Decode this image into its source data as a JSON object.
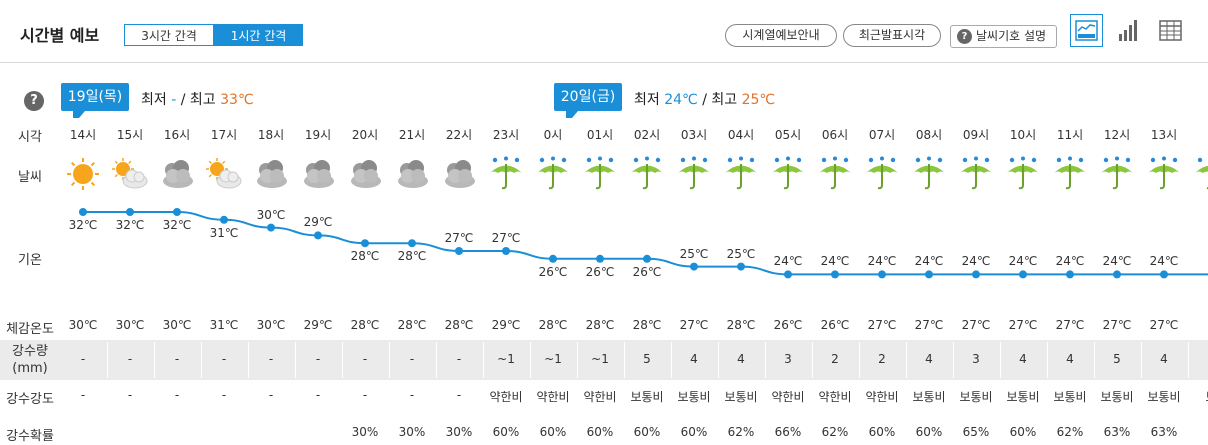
{
  "header": {
    "title": "시간별 예보",
    "interval_tabs": [
      "3시간 간격",
      "1시간 간격"
    ],
    "buttons": [
      "시계열예보안내",
      "최근발표시각"
    ],
    "guide_button": "날씨기호 설명",
    "view_icons": [
      "chart-view-icon",
      "bar-view-icon",
      "table-view-icon"
    ]
  },
  "days": [
    {
      "label": "19일(목)",
      "min_label": "최저",
      "min": "-",
      "sep": "/",
      "max_label": "최고",
      "max": "33℃"
    },
    {
      "label": "20일(금)",
      "min_label": "최저",
      "min": "24℃",
      "sep": "/",
      "max_label": "최고",
      "max": "25℃"
    }
  ],
  "row_labels": {
    "time": "시각",
    "weather": "날씨",
    "temp": "기온",
    "feel": "체감온도",
    "amount": "강수량",
    "amount_unit": "(mm)",
    "intensity": "강수강도",
    "probability": "강수확률"
  },
  "colors": {
    "accent": "#1a8fd8",
    "max_temp": "#e0742b",
    "umbrella": "#8cc63f",
    "sun": "#f7a51c"
  },
  "hours": [
    "14시",
    "15시",
    "16시",
    "17시",
    "18시",
    "19시",
    "20시",
    "21시",
    "22시",
    "23시",
    "0시",
    "01시",
    "02시",
    "03시",
    "04시",
    "05시",
    "06시",
    "07시",
    "08시",
    "09시",
    "10시",
    "11시",
    "12시",
    "13시",
    "1"
  ],
  "weather_icons": [
    "sunny-icon",
    "partly-cloudy-icon",
    "cloudy-icon",
    "partly-cloudy-icon",
    "cloudy-icon",
    "cloudy-icon",
    "cloudy-icon",
    "cloudy-icon",
    "cloudy-icon",
    "rain-umbrella-icon",
    "rain-umbrella-icon",
    "rain-umbrella-icon",
    "rain-umbrella-icon",
    "rain-umbrella-icon",
    "rain-umbrella-icon",
    "rain-umbrella-icon",
    "rain-umbrella-icon",
    "rain-umbrella-icon",
    "rain-umbrella-icon",
    "rain-umbrella-icon",
    "rain-umbrella-icon",
    "rain-umbrella-icon",
    "rain-umbrella-icon",
    "rain-umbrella-icon",
    "rain-umbrella-icon"
  ],
  "temps": [
    "32℃",
    "32℃",
    "32℃",
    "31℃",
    "30℃",
    "29℃",
    "28℃",
    "28℃",
    "27℃",
    "27℃",
    "26℃",
    "26℃",
    "26℃",
    "25℃",
    "25℃",
    "24℃",
    "24℃",
    "24℃",
    "24℃",
    "24℃",
    "24℃",
    "24℃",
    "24℃",
    "24℃",
    ""
  ],
  "chart_data": {
    "type": "line",
    "x": [
      "14시",
      "15시",
      "16시",
      "17시",
      "18시",
      "19시",
      "20시",
      "21시",
      "22시",
      "23시",
      "0시",
      "01시",
      "02시",
      "03시",
      "04시",
      "05시",
      "06시",
      "07시",
      "08시",
      "09시",
      "10시",
      "11시",
      "12시",
      "13시"
    ],
    "values": [
      32,
      32,
      32,
      31,
      30,
      29,
      28,
      28,
      27,
      27,
      26,
      26,
      26,
      25,
      25,
      24,
      24,
      24,
      24,
      24,
      24,
      24,
      24,
      24
    ],
    "title": "",
    "xlabel": "",
    "ylabel": "기온"
  },
  "feels": [
    "30℃",
    "30℃",
    "30℃",
    "31℃",
    "30℃",
    "29℃",
    "28℃",
    "28℃",
    "28℃",
    "29℃",
    "28℃",
    "28℃",
    "28℃",
    "27℃",
    "28℃",
    "26℃",
    "26℃",
    "27℃",
    "27℃",
    "27℃",
    "27℃",
    "27℃",
    "27℃",
    "27℃",
    "2"
  ],
  "amounts": [
    "-",
    "-",
    "-",
    "-",
    "-",
    "-",
    "-",
    "-",
    "-",
    "~1",
    "~1",
    "~1",
    "5",
    "4",
    "4",
    "3",
    "2",
    "2",
    "4",
    "3",
    "4",
    "4",
    "5",
    "4",
    ""
  ],
  "intensities": [
    "-",
    "-",
    "-",
    "-",
    "-",
    "-",
    "-",
    "-",
    "-",
    "약한비",
    "약한비",
    "약한비",
    "보통비",
    "보통비",
    "보통비",
    "약한비",
    "약한비",
    "약한비",
    "보통비",
    "보통비",
    "보통비",
    "보통비",
    "보통비",
    "보통비",
    "보"
  ],
  "probabilities": [
    "",
    "",
    "",
    "",
    "",
    "",
    "30%",
    "30%",
    "30%",
    "60%",
    "60%",
    "60%",
    "60%",
    "60%",
    "62%",
    "66%",
    "62%",
    "60%",
    "60%",
    "65%",
    "60%",
    "62%",
    "63%",
    "63%",
    "6"
  ]
}
